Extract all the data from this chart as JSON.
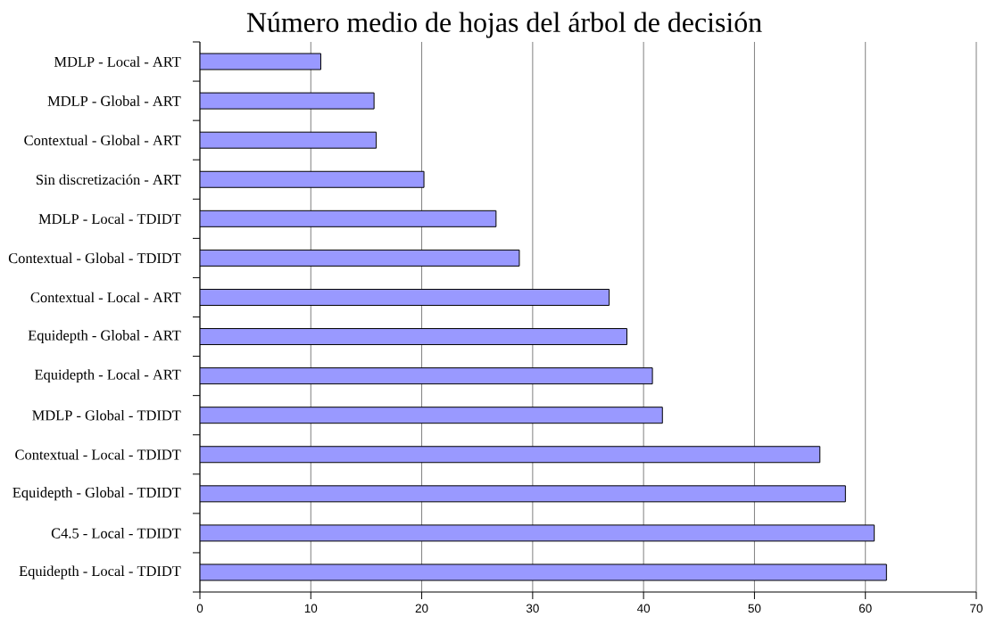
{
  "chart_data": {
    "type": "bar",
    "orientation": "horizontal",
    "title": "Número medio de hojas del árbol de decisión",
    "categories": [
      "MDLP - Local - ART",
      "MDLP - Global - ART",
      "Contextual - Global - ART",
      "Sin discretización - ART",
      "MDLP - Local - TDIDT",
      "Contextual - Global - TDIDT",
      "Contextual - Local - ART",
      "Equidepth - Global - ART",
      "Equidepth - Local - ART",
      "MDLP - Global - TDIDT",
      "Contextual - Local - TDIDT",
      "Equidepth - Global - TDIDT",
      "C4.5 - Local - TDIDT",
      "Equidepth - Local - TDIDT"
    ],
    "values": [
      10.9,
      15.7,
      15.9,
      20.2,
      26.7,
      28.8,
      36.9,
      38.5,
      40.8,
      41.7,
      55.9,
      58.2,
      60.8,
      61.9
    ],
    "color": "#9999ff",
    "xlim": [
      0,
      70
    ],
    "xticks": [
      0,
      10,
      20,
      30,
      40,
      50,
      60,
      70
    ],
    "grid": "x"
  }
}
